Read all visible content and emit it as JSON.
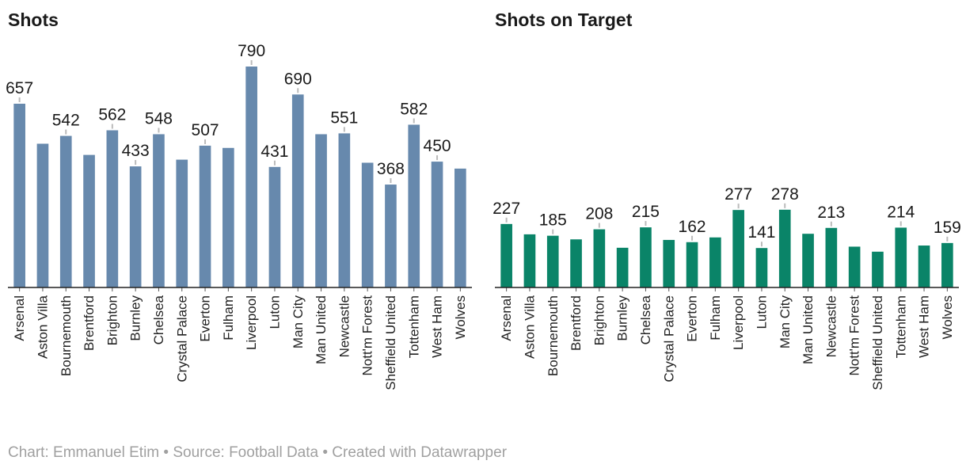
{
  "chart_data": [
    {
      "type": "bar",
      "title": "Shots",
      "xlabel": "",
      "ylabel": "",
      "ylim": [
        0,
        790
      ],
      "color": "#6789ad",
      "categories": [
        "Arsenal",
        "Aston Villa",
        "Bournemouth",
        "Brentford",
        "Brighton",
        "Burnley",
        "Chelsea",
        "Crystal Palace",
        "Everton",
        "Fulham",
        "Liverpool",
        "Luton",
        "Man City",
        "Man United",
        "Newcastle",
        "Nott'm Forest",
        "Sheffield United",
        "Tottenham",
        "West Ham",
        "Wolves"
      ],
      "values": [
        657,
        514,
        542,
        474,
        562,
        433,
        548,
        457,
        507,
        499,
        790,
        431,
        690,
        548,
        551,
        446,
        368,
        582,
        450,
        425
      ],
      "value_labels": [
        "657",
        "",
        "542",
        "",
        "562",
        "433",
        "548",
        "",
        "507",
        "",
        "790",
        "431",
        "690",
        "",
        "551",
        "",
        "368",
        "582",
        "450",
        ""
      ]
    },
    {
      "type": "bar",
      "title": "Shots on Target",
      "xlabel": "",
      "ylabel": "",
      "ylim": [
        0,
        790
      ],
      "color": "#0a8468",
      "categories": [
        "Arsenal",
        "Aston Villa",
        "Bournemouth",
        "Brentford",
        "Brighton",
        "Burnley",
        "Chelsea",
        "Crystal Palace",
        "Everton",
        "Fulham",
        "Liverpool",
        "Luton",
        "Man City",
        "Man United",
        "Newcastle",
        "Nott'm Forest",
        "Sheffield United",
        "Tottenham",
        "West Ham",
        "Wolves"
      ],
      "values": [
        227,
        190,
        185,
        172,
        208,
        142,
        215,
        170,
        162,
        179,
        277,
        141,
        278,
        192,
        213,
        146,
        128,
        214,
        150,
        159
      ],
      "value_labels": [
        "227",
        "",
        "185",
        "",
        "208",
        "",
        "215",
        "",
        "162",
        "",
        "277",
        "141",
        "278",
        "",
        "213",
        "",
        "",
        "214",
        "",
        "159"
      ]
    }
  ],
  "footer": "Chart: Emmanuel Etim • Source: Football Data • Created with Datawrapper"
}
